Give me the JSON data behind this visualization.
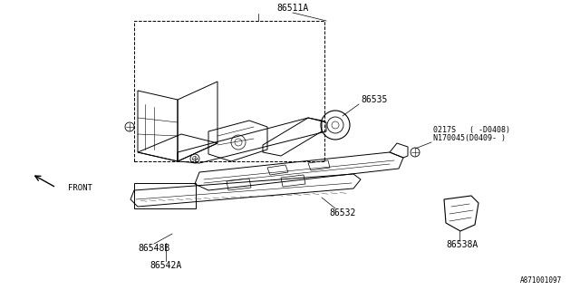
{
  "bg_color": "#ffffff",
  "line_color": "#000000",
  "diagram_ref": "A871001097",
  "label_86511A": "86511A",
  "label_86535": "86535",
  "label_0217S": "0217S   ( -D0408)",
  "label_N170045": "N170045(D0409- )",
  "label_86532": "86532",
  "label_86548B": "86548B",
  "label_86542A": "86542A",
  "label_86538A": "86538A",
  "label_FRONT": "FRONT"
}
